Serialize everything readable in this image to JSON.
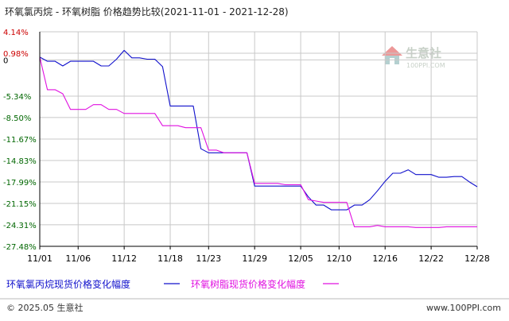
{
  "header": {
    "title": "环氧氯丙烷 - 环氧树脂 价格趋势比较(2021-11-01 - 2021-12-28)"
  },
  "watermark": {
    "brand": "生意社",
    "url": "100PPI.COM"
  },
  "footer": {
    "copyright": "© 2025.05 生意社",
    "site": "www.100PPI.com"
  },
  "colors": {
    "series1": "#1010cc",
    "series2": "#e010e0",
    "axis": "#000000",
    "grid": "#c8c8c8",
    "positive": "#cc0000",
    "negative": "#006600",
    "zero": "#000000"
  },
  "chart_data": {
    "type": "line",
    "title": "环氧氯丙烷 - 环氧树脂 价格趋势比较(2021-11-01 - 2021-12-28)",
    "xlabel": "",
    "ylabel": "",
    "x_start": "2021-11-01",
    "x_end": "2021-12-28",
    "x_ticks": [
      "11/01",
      "11/06",
      "11/12",
      "11/18",
      "11/23",
      "11/29",
      "12/05",
      "12/10",
      "12/16",
      "12/22",
      "12/28"
    ],
    "y_ticks": [
      "4.14%",
      "0.98%",
      "0",
      "-5.34%",
      "-8.50%",
      "-11.67%",
      "-14.83%",
      "-17.99%",
      "-21.15%",
      "-24.31%",
      "-27.48%"
    ],
    "y_tick_values": [
      4.14,
      0.98,
      0,
      -5.34,
      -8.5,
      -11.67,
      -14.83,
      -17.99,
      -21.15,
      -24.31,
      -27.48
    ],
    "ylim": [
      -27.48,
      4.14
    ],
    "grid": true,
    "legend_position": "bottom",
    "series": [
      {
        "name": "环氧氯丙烷现货价格变化幅度",
        "color": "#1010cc",
        "points": [
          [
            "2021-11-01",
            0.4
          ],
          [
            "2021-11-02",
            -0.2
          ],
          [
            "2021-11-03",
            -0.2
          ],
          [
            "2021-11-04",
            -0.9
          ],
          [
            "2021-11-05",
            -0.2
          ],
          [
            "2021-11-06",
            -0.2
          ],
          [
            "2021-11-07",
            -0.2
          ],
          [
            "2021-11-08",
            -0.2
          ],
          [
            "2021-11-09",
            -0.9
          ],
          [
            "2021-11-10",
            -0.9
          ],
          [
            "2021-11-11",
            0.1
          ],
          [
            "2021-11-12",
            1.4
          ],
          [
            "2021-11-13",
            0.3
          ],
          [
            "2021-11-14",
            0.3
          ],
          [
            "2021-11-15",
            0.1
          ],
          [
            "2021-11-16",
            0.1
          ],
          [
            "2021-11-17",
            -1.0
          ],
          [
            "2021-11-18",
            -6.8
          ],
          [
            "2021-11-19",
            -6.8
          ],
          [
            "2021-11-20",
            -6.8
          ],
          [
            "2021-11-21",
            -6.8
          ],
          [
            "2021-11-22",
            -13.1
          ],
          [
            "2021-11-23",
            -13.7
          ],
          [
            "2021-11-24",
            -13.7
          ],
          [
            "2021-11-25",
            -13.7
          ],
          [
            "2021-11-26",
            -13.7
          ],
          [
            "2021-11-27",
            -13.7
          ],
          [
            "2021-11-28",
            -13.7
          ],
          [
            "2021-11-29",
            -18.6
          ],
          [
            "2021-11-30",
            -18.6
          ],
          [
            "2021-12-01",
            -18.6
          ],
          [
            "2021-12-02",
            -18.6
          ],
          [
            "2021-12-03",
            -18.6
          ],
          [
            "2021-12-04",
            -18.6
          ],
          [
            "2021-12-05",
            -18.6
          ],
          [
            "2021-12-06",
            -20.2
          ],
          [
            "2021-12-07",
            -21.4
          ],
          [
            "2021-12-08",
            -21.4
          ],
          [
            "2021-12-09",
            -22.1
          ],
          [
            "2021-12-10",
            -22.1
          ],
          [
            "2021-12-11",
            -22.1
          ],
          [
            "2021-12-12",
            -21.4
          ],
          [
            "2021-12-13",
            -21.4
          ],
          [
            "2021-12-14",
            -20.6
          ],
          [
            "2021-12-15",
            -19.3
          ],
          [
            "2021-12-16",
            -17.9
          ],
          [
            "2021-12-17",
            -16.7
          ],
          [
            "2021-12-18",
            -16.7
          ],
          [
            "2021-12-19",
            -16.2
          ],
          [
            "2021-12-20",
            -16.9
          ],
          [
            "2021-12-21",
            -16.9
          ],
          [
            "2021-12-22",
            -16.9
          ],
          [
            "2021-12-23",
            -17.3
          ],
          [
            "2021-12-24",
            -17.3
          ],
          [
            "2021-12-25",
            -17.2
          ],
          [
            "2021-12-26",
            -17.2
          ],
          [
            "2021-12-27",
            -18.0
          ],
          [
            "2021-12-28",
            -18.7
          ]
        ]
      },
      {
        "name": "环氧树脂现货价格变化幅度",
        "color": "#e010e0",
        "points": [
          [
            "2021-11-01",
            0.4
          ],
          [
            "2021-11-02",
            -4.4
          ],
          [
            "2021-11-03",
            -4.4
          ],
          [
            "2021-11-04",
            -5.0
          ],
          [
            "2021-11-05",
            -7.3
          ],
          [
            "2021-11-06",
            -7.3
          ],
          [
            "2021-11-07",
            -7.3
          ],
          [
            "2021-11-08",
            -6.6
          ],
          [
            "2021-11-09",
            -6.6
          ],
          [
            "2021-11-10",
            -7.3
          ],
          [
            "2021-11-11",
            -7.3
          ],
          [
            "2021-11-12",
            -7.9
          ],
          [
            "2021-11-13",
            -7.9
          ],
          [
            "2021-11-14",
            -7.9
          ],
          [
            "2021-11-15",
            -7.9
          ],
          [
            "2021-11-16",
            -7.9
          ],
          [
            "2021-11-17",
            -9.7
          ],
          [
            "2021-11-18",
            -9.7
          ],
          [
            "2021-11-19",
            -9.7
          ],
          [
            "2021-11-20",
            -10.0
          ],
          [
            "2021-11-21",
            -10.0
          ],
          [
            "2021-11-22",
            -10.0
          ],
          [
            "2021-11-23",
            -13.3
          ],
          [
            "2021-11-24",
            -13.3
          ],
          [
            "2021-11-25",
            -13.7
          ],
          [
            "2021-11-26",
            -13.7
          ],
          [
            "2021-11-27",
            -13.7
          ],
          [
            "2021-11-28",
            -13.7
          ],
          [
            "2021-11-29",
            -18.2
          ],
          [
            "2021-11-30",
            -18.2
          ],
          [
            "2021-12-01",
            -18.2
          ],
          [
            "2021-12-02",
            -18.2
          ],
          [
            "2021-12-03",
            -18.4
          ],
          [
            "2021-12-04",
            -18.4
          ],
          [
            "2021-12-05",
            -18.4
          ],
          [
            "2021-12-06",
            -20.6
          ],
          [
            "2021-12-07",
            -20.8
          ],
          [
            "2021-12-08",
            -21.0
          ],
          [
            "2021-12-09",
            -21.0
          ],
          [
            "2021-12-10",
            -21.0
          ],
          [
            "2021-12-11",
            -21.0
          ],
          [
            "2021-12-12",
            -24.6
          ],
          [
            "2021-12-13",
            -24.6
          ],
          [
            "2021-12-14",
            -24.6
          ],
          [
            "2021-12-15",
            -24.4
          ],
          [
            "2021-12-16",
            -24.6
          ],
          [
            "2021-12-17",
            -24.6
          ],
          [
            "2021-12-18",
            -24.6
          ],
          [
            "2021-12-19",
            -24.6
          ],
          [
            "2021-12-20",
            -24.7
          ],
          [
            "2021-12-21",
            -24.7
          ],
          [
            "2021-12-22",
            -24.7
          ],
          [
            "2021-12-23",
            -24.7
          ],
          [
            "2021-12-24",
            -24.6
          ],
          [
            "2021-12-25",
            -24.6
          ],
          [
            "2021-12-26",
            -24.6
          ],
          [
            "2021-12-27",
            -24.6
          ],
          [
            "2021-12-28",
            -24.6
          ]
        ]
      }
    ]
  }
}
